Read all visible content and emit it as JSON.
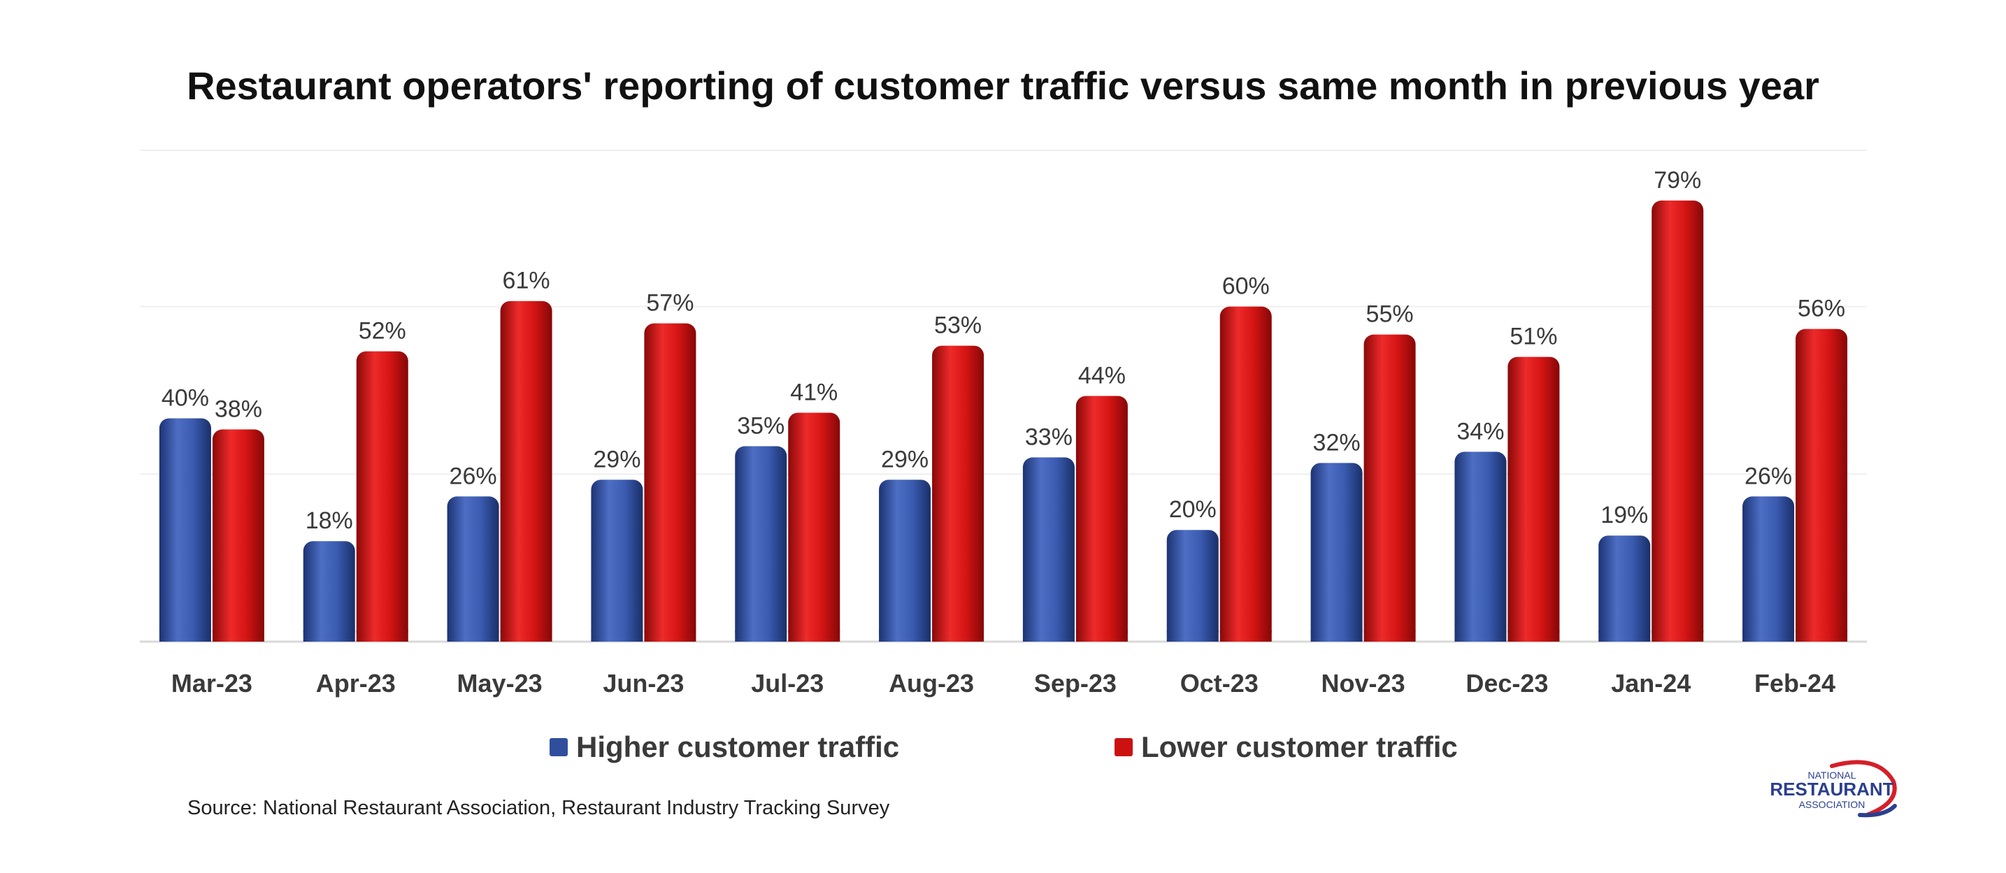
{
  "chart_data": {
    "type": "bar",
    "title": "Restaurant operators' reporting of customer traffic versus same month in previous year",
    "categories": [
      "Mar-23",
      "Apr-23",
      "May-23",
      "Jun-23",
      "Jul-23",
      "Aug-23",
      "Sep-23",
      "Oct-23",
      "Nov-23",
      "Dec-23",
      "Jan-24",
      "Feb-24"
    ],
    "series": [
      {
        "name": "Higher customer traffic",
        "color": "#2f4f9c",
        "values": [
          40,
          18,
          26,
          29,
          35,
          29,
          33,
          20,
          32,
          34,
          19,
          26
        ]
      },
      {
        "name": "Lower customer traffic",
        "color": "#cc1111",
        "values": [
          38,
          52,
          61,
          57,
          41,
          53,
          44,
          60,
          55,
          51,
          79,
          56
        ]
      }
    ],
    "value_suffix": "%",
    "xlabel": "",
    "ylabel": "",
    "ylim": [
      0,
      88
    ],
    "gridlines": [
      30,
      60,
      88
    ],
    "legend": "bottom"
  },
  "source": "Source: National Restaurant Association, Restaurant Industry Tracking Survey",
  "logo": {
    "line1": "NATIONAL",
    "line2": "RESTAURANT",
    "line3": "ASSOCIATION",
    "color": "#2b3f8f",
    "accent": "#d4202a"
  }
}
